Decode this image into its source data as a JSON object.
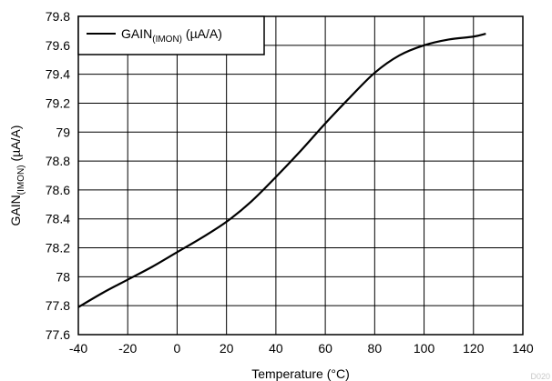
{
  "chart_data": {
    "type": "line",
    "xlabel": "Temperature (°C)",
    "ylabel": {
      "main": "GAIN",
      "sub": "(IMON)",
      "unit": " (µA/A)"
    },
    "xlim": [
      -40,
      140
    ],
    "ylim": [
      77.6,
      79.8
    ],
    "x_ticks": [
      -40,
      -20,
      0,
      20,
      40,
      60,
      80,
      100,
      120,
      140
    ],
    "y_ticks": [
      77.6,
      77.8,
      78,
      78.2,
      78.4,
      78.6,
      78.8,
      79,
      79.2,
      79.4,
      79.6,
      79.8
    ],
    "grid": true,
    "legend_position": "top-left",
    "series": [
      {
        "name": {
          "main": "GAIN",
          "sub": "(IMON)",
          "unit": " (µA/A)"
        },
        "color": "#000000",
        "x": [
          -40,
          -30,
          -20,
          -10,
          0,
          10,
          20,
          30,
          40,
          50,
          60,
          70,
          80,
          90,
          100,
          110,
          120,
          125
        ],
        "y": [
          77.79,
          77.89,
          77.98,
          78.07,
          78.17,
          78.27,
          78.38,
          78.52,
          78.69,
          78.87,
          79.06,
          79.24,
          79.41,
          79.53,
          79.6,
          79.64,
          79.66,
          79.68
        ]
      }
    ]
  },
  "watermark": "D020"
}
